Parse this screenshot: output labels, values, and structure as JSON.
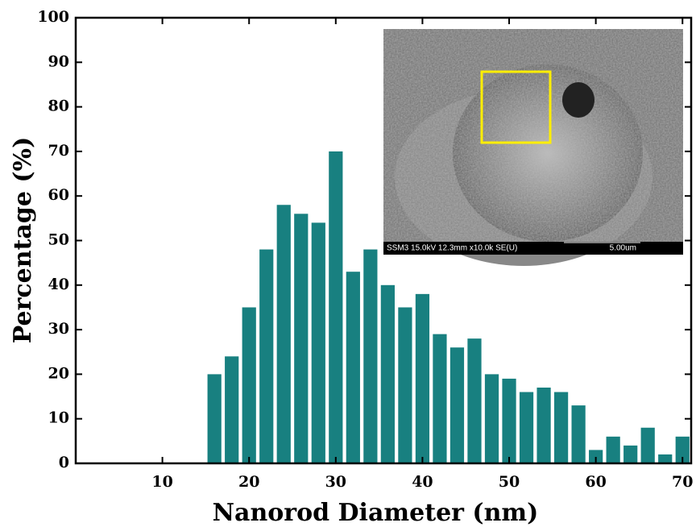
{
  "chart_data": {
    "type": "bar",
    "x_label": "Nanorod Diameter (nm)",
    "y_label": "Percentage (%)",
    "x": [
      16,
      18,
      20,
      22,
      24,
      26,
      28,
      30,
      32,
      34,
      36,
      38,
      40,
      42,
      44,
      46,
      48,
      50,
      52,
      54,
      56,
      58,
      60,
      62,
      64,
      66,
      68,
      70
    ],
    "values": [
      20,
      24,
      35,
      48,
      58,
      56,
      54,
      70,
      43,
      48,
      40,
      35,
      38,
      29,
      26,
      28,
      20,
      19,
      16,
      17,
      16,
      13,
      3,
      6,
      4,
      8,
      2,
      6
    ],
    "bar_width": 1.6,
    "color": "#188080",
    "xlim": [
      0,
      71
    ],
    "xticks": [
      10,
      20,
      30,
      40,
      50,
      60,
      70
    ],
    "ylim": [
      0,
      100
    ],
    "yticks": [
      0,
      10,
      20,
      30,
      40,
      50,
      60,
      70,
      80,
      90,
      100
    ],
    "inset": {
      "caption": "SSM3 15.0kV 12.3mm x10.0k SE(U)",
      "scale": "5.00um"
    }
  }
}
